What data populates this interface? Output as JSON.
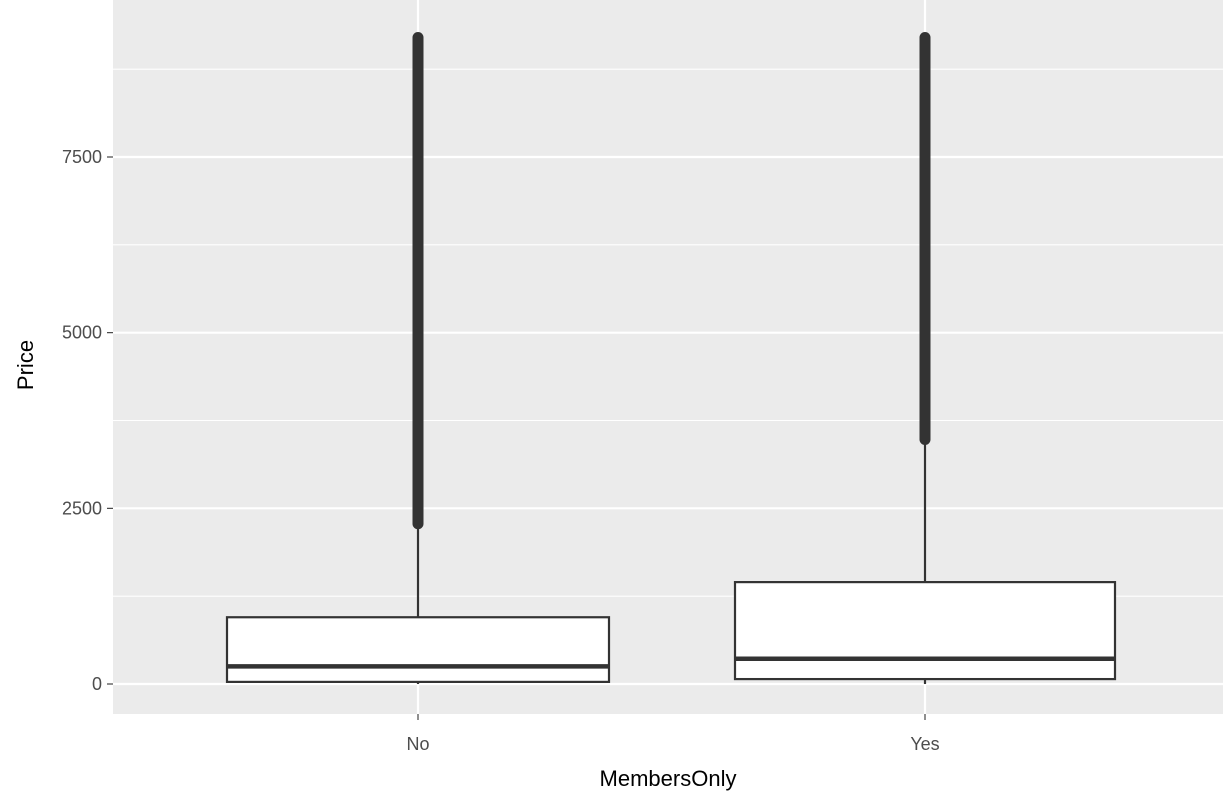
{
  "chart_data": {
    "type": "box",
    "xlabel": "MembersOnly",
    "ylabel": "Price",
    "categories": [
      "No",
      "Yes"
    ],
    "y_ticks": [
      0,
      2500,
      5000,
      7500
    ],
    "y_tick_labels": [
      "0",
      "2500",
      "5000",
      "7500"
    ],
    "ylim": [
      -400,
      9700
    ],
    "grid": true,
    "boxes": [
      {
        "category": "No",
        "lower_whisker": 0,
        "q1": 30,
        "median": 250,
        "q3": 950,
        "upper_whisker": 2280,
        "outliers_from": 2280,
        "outliers_to": 9200
      },
      {
        "category": "Yes",
        "lower_whisker": 0,
        "q1": 70,
        "median": 360,
        "q3": 1450,
        "upper_whisker": 3480,
        "outliers_from": 3480,
        "outliers_to": 9200
      }
    ],
    "colors": {
      "panel": "#ebebeb",
      "box_fill": "#ffffff",
      "box_line": "#333333",
      "grid": "#ffffff"
    }
  }
}
